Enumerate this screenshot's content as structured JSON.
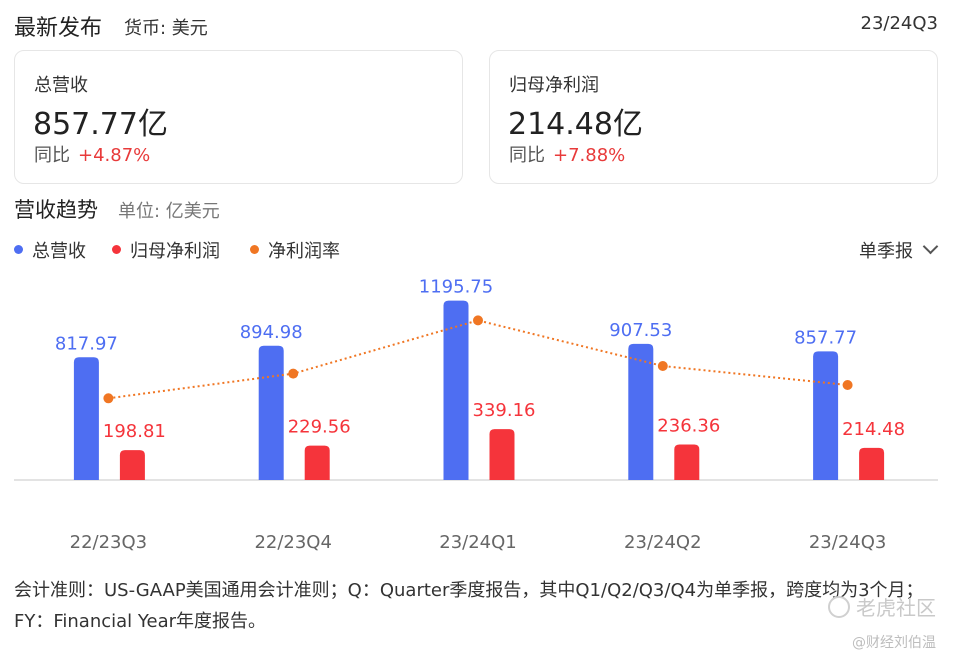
{
  "header": {
    "title": "最新发布",
    "currency": "货币: 美元",
    "period": "23/24Q3"
  },
  "cards": [
    {
      "label": "总营收",
      "value": "857.77亿",
      "yoy_label": "同比",
      "yoy_value": "+4.87%"
    },
    {
      "label": "归母净利润",
      "value": "214.48亿",
      "yoy_label": "同比",
      "yoy_value": "+7.88%"
    }
  ],
  "section": {
    "title": "营收趋势",
    "unit": "单位: 亿美元"
  },
  "legend": [
    {
      "label": "总营收",
      "color": "#4e6ef2"
    },
    {
      "label": "归母净利润",
      "color": "#f5343b"
    },
    {
      "label": "净利润率",
      "color": "#f07623"
    }
  ],
  "period_select": {
    "label": "单季报",
    "icon": "chevron-down-icon"
  },
  "chart_data": {
    "type": "bar",
    "categories": [
      "22/23Q3",
      "22/23Q4",
      "23/24Q1",
      "23/24Q2",
      "23/24Q3"
    ],
    "series": [
      {
        "name": "总营收",
        "type": "bar",
        "color": "#4e6ef2",
        "values": [
          817.97,
          894.98,
          1195.75,
          907.53,
          857.77
        ]
      },
      {
        "name": "归母净利润",
        "type": "bar",
        "color": "#f5343b",
        "values": [
          198.81,
          229.56,
          339.16,
          236.36,
          214.48
        ]
      },
      {
        "name": "净利润率",
        "type": "line",
        "color": "#f07623",
        "style": "dotted",
        "values": [
          24.3,
          25.6,
          28.4,
          26.0,
          25.0
        ]
      }
    ],
    "value_labels": {
      "总营收": [
        "817.97",
        "894.98",
        "1195.75",
        "907.53",
        "857.77"
      ],
      "归母净利润": [
        "198.81",
        "229.56",
        "339.16",
        "236.36",
        "214.48"
      ]
    },
    "ylim": [
      0,
      1200
    ],
    "grid": false
  },
  "footer": "会计准则：US-GAAP美国通用会计准则；Q：Quarter季度报告，其中Q1/Q2/Q3/Q4为单季报，跨度均为3个月；FY：Financial Year年度报告。",
  "watermark": {
    "text": "老虎社区",
    "sub": "@财经刘伯温"
  }
}
